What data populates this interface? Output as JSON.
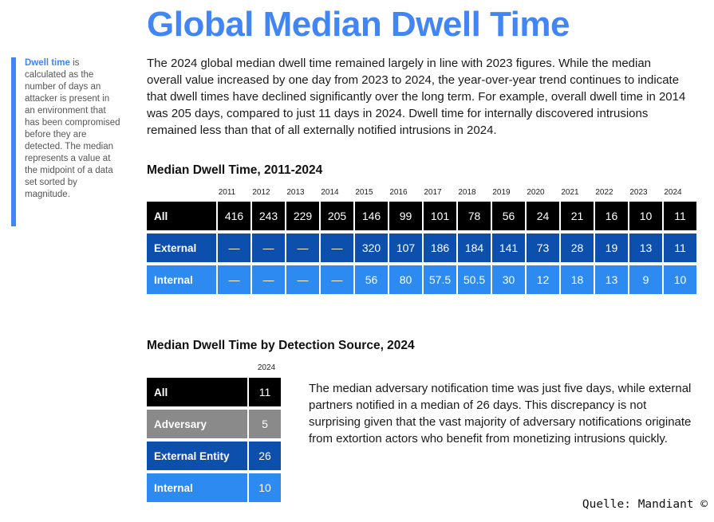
{
  "title": "Global Median Dwell Time",
  "sidebar": {
    "term": "Dwell time",
    "definition": " is calculated as the number of days an attacker is present in an environment that has been compromised before they are detected. The median represents a value at the midpoint of a data set sorted by magnitude."
  },
  "intro": "The 2024 global median dwell time remained largely in line with 2023 figures. While the median overall value increased by one day from 2023 to 2024, the year-over-year trend continues to indicate that dwell times have declined significantly over the long term. For example, overall dwell time in 2014 was 205 days, compared to just 11 days in 2024. Dwell time for internally discovered intrusions remained less than that of all externally notified intrusions in 2024.",
  "table1": {
    "title": "Median Dwell Time, 2011-2024",
    "years": [
      "2011",
      "2012",
      "2013",
      "2014",
      "2015",
      "2016",
      "2017",
      "2018",
      "2019",
      "2020",
      "2021",
      "2022",
      "2023",
      "2024"
    ],
    "rows": [
      {
        "label": "All",
        "values": [
          "416",
          "243",
          "229",
          "205",
          "146",
          "99",
          "101",
          "78",
          "56",
          "24",
          "21",
          "16",
          "10",
          "11"
        ]
      },
      {
        "label": "External",
        "values": [
          "—",
          "—",
          "—",
          "—",
          "320",
          "107",
          "186",
          "184",
          "141",
          "73",
          "28",
          "19",
          "13",
          "11"
        ]
      },
      {
        "label": "Internal",
        "values": [
          "—",
          "—",
          "—",
          "—",
          "56",
          "80",
          "57.5",
          "50.5",
          "30",
          "12",
          "18",
          "13",
          "9",
          "10"
        ]
      }
    ]
  },
  "table2": {
    "title": "Median Dwell Time by Detection Source, 2024",
    "year": "2024",
    "rows": [
      {
        "label": "All",
        "value": "11"
      },
      {
        "label": "Adversary",
        "value": "5"
      },
      {
        "label": "External Entity",
        "value": "26"
      },
      {
        "label": "Internal",
        "value": "10"
      }
    ]
  },
  "note": "The median adversary notification time was just five days, while external partners notified in a median of 26 days. This discrepancy is not surprising given that the vast majority of adversary notifications originate from extortion actors who benefit from monetizing intrusions quickly.",
  "source": "Quelle: Mandiant ©",
  "colors": {
    "accent": "#4285f4",
    "all": "#000000",
    "external": "#0d4fad",
    "internal": "#2d8af0",
    "adversary": "#8a8a8a"
  }
}
